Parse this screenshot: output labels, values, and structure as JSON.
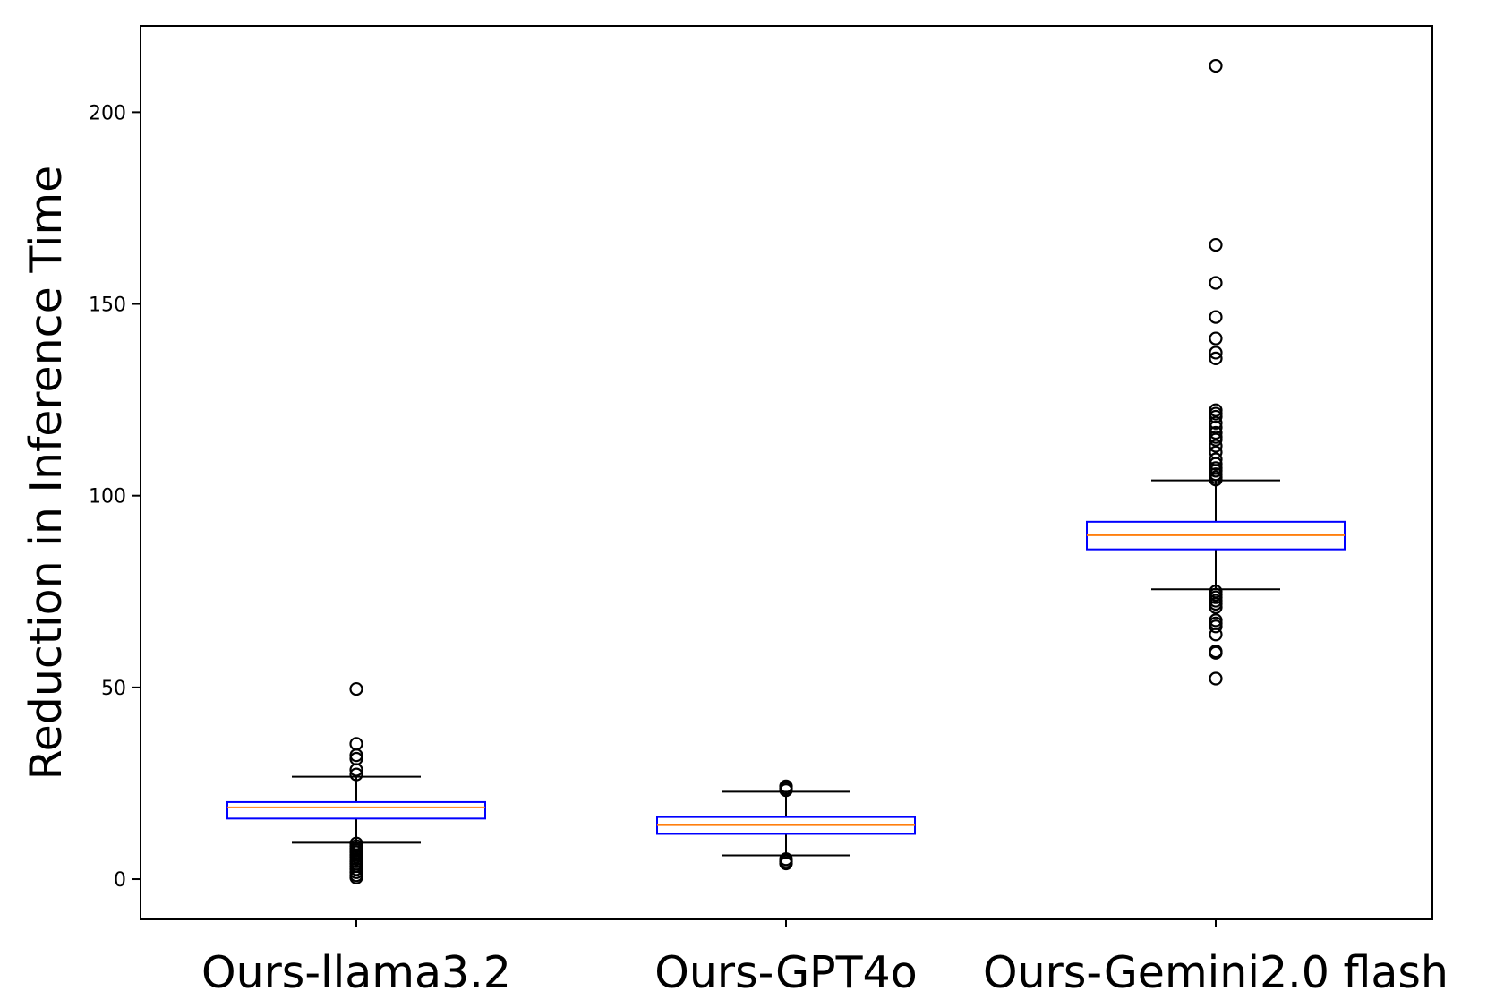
{
  "chart_data": {
    "type": "box",
    "title": "",
    "xlabel": "",
    "ylabel": "Reduction in Inference Time",
    "ylim": [
      -10.5,
      222.5
    ],
    "yticks": [
      0,
      50,
      100,
      150,
      200
    ],
    "grid": false,
    "categories": [
      "Ours-llama3.2",
      "Ours-GPT4o",
      "Ours-Gemini2.0 flash"
    ],
    "boxes": [
      {
        "name": "Ours-llama3.2",
        "whisker_low": 9.5,
        "q1": 15.8,
        "median": 18.7,
        "q3": 20.1,
        "whisker_high": 26.7,
        "outliers": [
          49.6,
          35.3,
          32.3,
          31.4,
          28.5,
          27.3,
          9.3,
          8.6,
          8.0,
          7.5,
          7.0,
          6.3,
          5.8,
          5.2,
          4.6,
          4.0,
          3.4,
          2.6,
          1.8,
          1.0,
          0.4
        ]
      },
      {
        "name": "Ours-GPT4o",
        "whisker_low": 6.2,
        "q1": 11.8,
        "median": 14.1,
        "q3": 16.2,
        "whisker_high": 22.8,
        "outliers": [
          24.2,
          23.7,
          23.2,
          5.2,
          4.6,
          4.1
        ]
      },
      {
        "name": "Ours-Gemini2.0 flash",
        "whisker_low": 75.6,
        "q1": 86.0,
        "median": 89.7,
        "q3": 93.2,
        "whisker_high": 104.0,
        "outliers": [
          212.1,
          165.4,
          155.5,
          146.6,
          141.0,
          137.3,
          135.8,
          122.3,
          121.4,
          120.6,
          119.0,
          117.8,
          116.4,
          115.3,
          114.6,
          113.0,
          111.3,
          109.5,
          108.3,
          107.2,
          106.5,
          105.6,
          104.8,
          104.2,
          75.0,
          74.2,
          73.5,
          72.6,
          71.8,
          70.9,
          67.5,
          66.7,
          65.9,
          63.8,
          59.4,
          59.0,
          52.3
        ]
      }
    ],
    "colors": {
      "box": "#0000ff",
      "median": "#ff7f0e",
      "whisker": "#000000",
      "outlier": "#000000",
      "axis": "#000000"
    }
  }
}
